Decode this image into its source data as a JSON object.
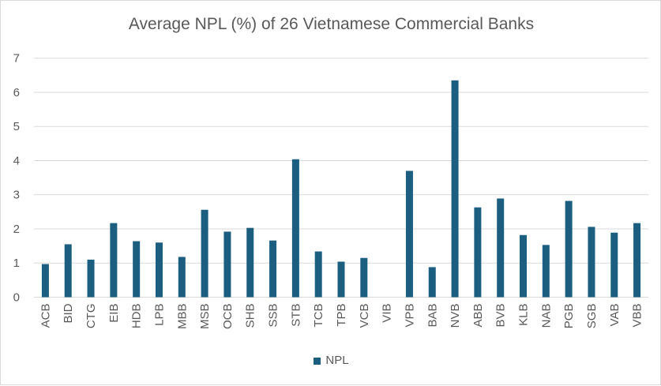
{
  "chart_data": {
    "type": "bar",
    "title": "Average NPL (%) of 26 Vietnamese Commercial Banks",
    "xlabel": "",
    "ylabel": "",
    "ylim": [
      0,
      7
    ],
    "yticks": [
      0,
      1,
      2,
      3,
      4,
      5,
      6,
      7
    ],
    "grid": true,
    "legend_position": "bottom",
    "categories": [
      "ACB",
      "BID",
      "CTG",
      "EIB",
      "HDB",
      "LPB",
      "MBB",
      "MSB",
      "OCB",
      "SHB",
      "SSB",
      "STB",
      "TCB",
      "TPB",
      "VCB",
      "VIB",
      "VPB",
      "BAB",
      "NVB",
      "ABB",
      "BVB",
      "KLB",
      "NAB",
      "PGB",
      "SGB",
      "VAB",
      "VBB"
    ],
    "series": [
      {
        "name": "NPL",
        "color": "#1B5E80",
        "values": [
          0.97,
          1.55,
          1.1,
          2.17,
          1.64,
          1.6,
          1.18,
          2.56,
          1.92,
          2.03,
          1.66,
          4.04,
          1.34,
          1.04,
          1.15,
          0,
          3.7,
          0.88,
          6.35,
          2.63,
          2.89,
          1.82,
          1.53,
          2.82,
          2.06,
          1.89,
          2.17
        ]
      }
    ]
  }
}
